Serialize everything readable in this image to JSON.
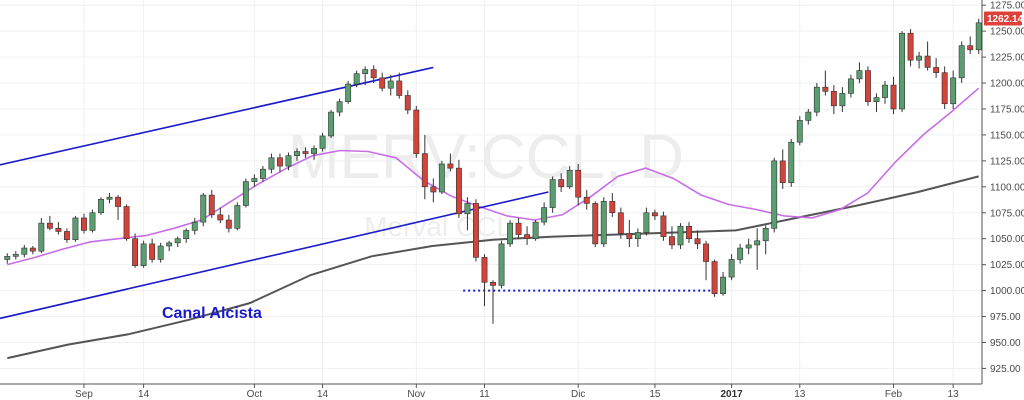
{
  "chart_data": {
    "type": "candlestick",
    "watermark": {
      "symbol": "MERV:CCL, D",
      "subtitle": "Merval CCL"
    },
    "annotation": {
      "text": "Canal Alcista",
      "color": "#1a1acc"
    },
    "price_label": {
      "value": "1262.14",
      "color": "#e0403a"
    },
    "y_axis": {
      "min": 910,
      "max": 1280,
      "ticks": [
        "925.00",
        "950.00",
        "975.00",
        "1000.00",
        "1025.00",
        "1050.00",
        "1075.00",
        "1100.00",
        "1125.00",
        "1150.00",
        "1175.00",
        "1200.00",
        "1225.00",
        "1250.00",
        "1275.00"
      ]
    },
    "x_axis": {
      "bar_count": 115,
      "ticks": [
        {
          "label": "Sep",
          "bar": 9,
          "bold": false
        },
        {
          "label": "14",
          "bar": 16,
          "bold": false
        },
        {
          "label": "Oct",
          "bar": 29,
          "bold": false
        },
        {
          "label": "14",
          "bar": 37,
          "bold": false
        },
        {
          "label": "Nov",
          "bar": 48,
          "bold": false
        },
        {
          "label": "11",
          "bar": 56,
          "bold": false
        },
        {
          "label": "Dic",
          "bar": 67,
          "bold": false
        },
        {
          "label": "15",
          "bar": 76,
          "bold": false
        },
        {
          "label": "2017",
          "bar": 85,
          "bold": true
        },
        {
          "label": "13",
          "bar": 93,
          "bold": false
        },
        {
          "label": "Feb",
          "bar": 104,
          "bold": false
        },
        {
          "label": "13",
          "bar": 111,
          "bold": false
        }
      ]
    },
    "colors": {
      "up": "#5a9e6f",
      "down": "#d0443b",
      "ma_fast": "#c86ee6",
      "ma_slow": "#555555",
      "channel": "#1a1acc",
      "support": "#1a1acc"
    },
    "candles": [
      [
        1030,
        1036,
        1026,
        1033
      ],
      [
        1033,
        1038,
        1030,
        1035
      ],
      [
        1035,
        1044,
        1032,
        1041
      ],
      [
        1041,
        1043,
        1035,
        1038
      ],
      [
        1038,
        1070,
        1036,
        1065
      ],
      [
        1065,
        1072,
        1058,
        1060
      ],
      [
        1060,
        1066,
        1054,
        1057
      ],
      [
        1057,
        1060,
        1046,
        1049
      ],
      [
        1049,
        1072,
        1047,
        1070
      ],
      [
        1070,
        1074,
        1055,
        1058
      ],
      [
        1058,
        1078,
        1056,
        1075
      ],
      [
        1075,
        1090,
        1073,
        1088
      ],
      [
        1088,
        1094,
        1084,
        1090
      ],
      [
        1090,
        1092,
        1068,
        1081
      ],
      [
        1081,
        1083,
        1048,
        1050
      ],
      [
        1050,
        1055,
        1022,
        1024
      ],
      [
        1024,
        1048,
        1022,
        1045
      ],
      [
        1045,
        1050,
        1027,
        1030
      ],
      [
        1030,
        1046,
        1027,
        1043
      ],
      [
        1043,
        1048,
        1038,
        1046
      ],
      [
        1046,
        1052,
        1042,
        1050
      ],
      [
        1050,
        1060,
        1046,
        1058
      ],
      [
        1058,
        1070,
        1054,
        1066
      ],
      [
        1066,
        1094,
        1062,
        1092
      ],
      [
        1092,
        1097,
        1070,
        1073
      ],
      [
        1073,
        1080,
        1065,
        1068
      ],
      [
        1068,
        1073,
        1056,
        1060
      ],
      [
        1060,
        1085,
        1058,
        1082
      ],
      [
        1082,
        1108,
        1080,
        1105
      ],
      [
        1105,
        1112,
        1100,
        1108
      ],
      [
        1108,
        1120,
        1105,
        1117
      ],
      [
        1117,
        1132,
        1113,
        1128
      ],
      [
        1128,
        1132,
        1114,
        1120
      ],
      [
        1120,
        1133,
        1116,
        1130
      ],
      [
        1130,
        1137,
        1125,
        1134
      ],
      [
        1134,
        1138,
        1128,
        1132
      ],
      [
        1132,
        1140,
        1126,
        1137
      ],
      [
        1137,
        1152,
        1134,
        1149
      ],
      [
        1149,
        1174,
        1147,
        1172
      ],
      [
        1172,
        1185,
        1168,
        1182
      ],
      [
        1182,
        1202,
        1180,
        1199
      ],
      [
        1199,
        1212,
        1196,
        1209
      ],
      [
        1209,
        1216,
        1198,
        1213
      ],
      [
        1213,
        1217,
        1200,
        1205
      ],
      [
        1205,
        1210,
        1192,
        1195
      ],
      [
        1195,
        1208,
        1188,
        1202
      ],
      [
        1202,
        1210,
        1185,
        1188
      ],
      [
        1188,
        1193,
        1170,
        1174
      ],
      [
        1174,
        1178,
        1128,
        1132
      ],
      [
        1132,
        1150,
        1088,
        1100
      ],
      [
        1100,
        1108,
        1085,
        1095
      ],
      [
        1095,
        1125,
        1093,
        1122
      ],
      [
        1122,
        1132,
        1115,
        1118
      ],
      [
        1118,
        1126,
        1070,
        1074
      ],
      [
        1074,
        1090,
        1058,
        1084
      ],
      [
        1084,
        1088,
        1028,
        1032
      ],
      [
        1032,
        1035,
        985,
        1008
      ],
      [
        1008,
        1010,
        968,
        1005
      ],
      [
        1005,
        1048,
        1002,
        1045
      ],
      [
        1045,
        1068,
        1042,
        1065
      ],
      [
        1065,
        1070,
        1050,
        1054
      ],
      [
        1054,
        1062,
        1044,
        1050
      ],
      [
        1050,
        1068,
        1048,
        1066
      ],
      [
        1066,
        1085,
        1063,
        1080
      ],
      [
        1080,
        1110,
        1075,
        1107
      ],
      [
        1107,
        1113,
        1095,
        1100
      ],
      [
        1100,
        1120,
        1098,
        1116
      ],
      [
        1116,
        1122,
        1082,
        1090
      ],
      [
        1090,
        1097,
        1078,
        1084
      ],
      [
        1084,
        1086,
        1042,
        1045
      ],
      [
        1045,
        1090,
        1042,
        1086
      ],
      [
        1086,
        1094,
        1071,
        1075
      ],
      [
        1075,
        1080,
        1050,
        1055
      ],
      [
        1055,
        1068,
        1042,
        1050
      ],
      [
        1050,
        1060,
        1042,
        1056
      ],
      [
        1056,
        1080,
        1053,
        1075
      ],
      [
        1075,
        1078,
        1068,
        1072
      ],
      [
        1072,
        1076,
        1048,
        1052
      ],
      [
        1052,
        1062,
        1040,
        1044
      ],
      [
        1044,
        1065,
        1040,
        1062
      ],
      [
        1062,
        1066,
        1046,
        1050
      ],
      [
        1050,
        1058,
        1040,
        1045
      ],
      [
        1045,
        1048,
        1010,
        1028
      ],
      [
        1028,
        1030,
        994,
        997
      ],
      [
        997,
        1018,
        995,
        1013
      ],
      [
        1013,
        1035,
        1010,
        1030
      ],
      [
        1030,
        1045,
        1026,
        1041
      ],
      [
        1041,
        1050,
        1035,
        1044
      ],
      [
        1044,
        1060,
        1020,
        1048
      ],
      [
        1048,
        1063,
        1035,
        1060
      ],
      [
        1060,
        1128,
        1056,
        1125
      ],
      [
        1125,
        1136,
        1098,
        1104
      ],
      [
        1104,
        1146,
        1100,
        1143
      ],
      [
        1143,
        1168,
        1140,
        1164
      ],
      [
        1164,
        1175,
        1160,
        1172
      ],
      [
        1172,
        1200,
        1168,
        1196
      ],
      [
        1196,
        1212,
        1188,
        1192
      ],
      [
        1192,
        1198,
        1170,
        1178
      ],
      [
        1178,
        1196,
        1172,
        1190
      ],
      [
        1190,
        1208,
        1186,
        1204
      ],
      [
        1204,
        1220,
        1200,
        1212
      ],
      [
        1212,
        1216,
        1178,
        1182
      ],
      [
        1182,
        1190,
        1172,
        1186
      ],
      [
        1186,
        1202,
        1180,
        1198
      ],
      [
        1198,
        1206,
        1170,
        1175
      ],
      [
        1175,
        1250,
        1172,
        1248
      ],
      [
        1248,
        1252,
        1216,
        1222
      ],
      [
        1222,
        1230,
        1214,
        1226
      ],
      [
        1226,
        1240,
        1212,
        1215
      ],
      [
        1215,
        1224,
        1205,
        1210
      ],
      [
        1210,
        1216,
        1175,
        1180
      ],
      [
        1180,
        1212,
        1175,
        1205
      ],
      [
        1205,
        1240,
        1200,
        1236
      ],
      [
        1236,
        1245,
        1228,
        1232
      ],
      [
        1232,
        1262,
        1228,
        1258
      ]
    ],
    "ma_fast": [
      1025,
      1032,
      1040,
      1047,
      1050,
      1053,
      1060,
      1068,
      1085,
      1102,
      1117,
      1130,
      1135,
      1134,
      1128,
      1106,
      1091,
      1081,
      1072,
      1068,
      1073,
      1090,
      1110,
      1118,
      1108,
      1092,
      1083,
      1078,
      1072,
      1070,
      1078,
      1094,
      1124,
      1150,
      1172,
      1195
    ],
    "ma_slow": [
      935,
      948,
      958,
      972,
      988,
      1015,
      1033,
      1043,
      1049,
      1052,
      1054,
      1056,
      1058,
      1070,
      1082,
      1095,
      1110
    ]
  }
}
